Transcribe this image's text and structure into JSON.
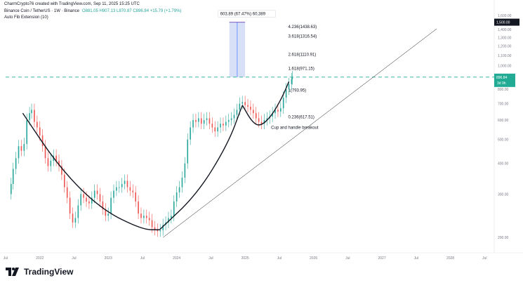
{
  "header": {
    "title": "CharmCrypto76 created with TradingView.com, Sep 11, 2025 15:25 UTC",
    "symbol": "Binance Coin / TetherUS · 1W · Binance",
    "ohlc": "O881.05 H907.13 L870.87 C896.84 +15.79 (+1.79%)",
    "indicator": "Auto Fib Extension (10)"
  },
  "footer": {
    "brand": "TradingView"
  },
  "colors": {
    "up": "#26a69a",
    "down": "#ef5350",
    "accent": "#2962ff",
    "teal_line": "#22ab94",
    "measure_fill": "#d1dbf6",
    "price_badge": "#22ab94",
    "target_badge": "#131722"
  },
  "chart_data": {
    "type": "candlestick",
    "x_ticks": [
      "Jul",
      "2022",
      "Jul",
      "2023",
      "Jul",
      "2024",
      "Jul",
      "2025",
      "Jul",
      "2026",
      "Jul",
      "2027",
      "Jul",
      "2028",
      "Jul"
    ],
    "y_ticks": [
      "1,600.00",
      "1,500.00",
      "1,400.00",
      "1,300.00",
      "1,200.00",
      "1,100.00",
      "1,000.00",
      "900.00",
      "800.00",
      "700.00",
      "600.00",
      "500.00",
      "400.00",
      "300.00",
      "200.00"
    ],
    "ylim": [
      185,
      1640
    ],
    "price_label": "896.84",
    "price_countdown": "3d 9h",
    "target_label": "1,500.00",
    "measure_label": "603.89 (67.47%) 60,389",
    "fib_levels": [
      {
        "label": "4.236(1438.63)",
        "value": 1438.63
      },
      {
        "label": "3.618(1316.54)",
        "value": 1316.54
      },
      {
        "label": "2.618(1110.91)",
        "value": 1110.91
      },
      {
        "label": "1.618(971.15)",
        "value": 971.15
      },
      {
        "label": "1(793.95)",
        "value": 793.95
      },
      {
        "label": "0.236(617.51)",
        "value": 617.51
      }
    ],
    "annotation": "Cup and handle breakout",
    "series": [
      {
        "kind": "candles",
        "close_points": [
          [
            2021.55,
            300
          ],
          [
            2021.58,
            330
          ],
          [
            2021.61,
            380
          ],
          [
            2021.65,
            420
          ],
          [
            2021.69,
            470
          ],
          [
            2021.73,
            450
          ],
          [
            2021.77,
            480
          ],
          [
            2021.81,
            600
          ],
          [
            2021.85,
            640
          ],
          [
            2021.88,
            660
          ],
          [
            2021.92,
            590
          ],
          [
            2021.96,
            560
          ],
          [
            2022.0,
            520
          ],
          [
            2022.04,
            470
          ],
          [
            2022.08,
            420
          ],
          [
            2022.12,
            390
          ],
          [
            2022.16,
            410
          ],
          [
            2022.2,
            430
          ],
          [
            2022.24,
            410
          ],
          [
            2022.28,
            390
          ],
          [
            2022.32,
            360
          ],
          [
            2022.36,
            320
          ],
          [
            2022.4,
            290
          ],
          [
            2022.44,
            250
          ],
          [
            2022.48,
            230
          ],
          [
            2022.52,
            240
          ],
          [
            2022.56,
            270
          ],
          [
            2022.6,
            300
          ],
          [
            2022.64,
            290
          ],
          [
            2022.68,
            280
          ],
          [
            2022.72,
            275
          ],
          [
            2022.76,
            290
          ],
          [
            2022.8,
            310
          ],
          [
            2022.84,
            300
          ],
          [
            2022.88,
            280
          ],
          [
            2022.92,
            260
          ],
          [
            2022.96,
            245
          ],
          [
            2023.0,
            250
          ],
          [
            2023.04,
            290
          ],
          [
            2023.08,
            310
          ],
          [
            2023.12,
            320
          ],
          [
            2023.16,
            320
          ],
          [
            2023.2,
            330
          ],
          [
            2023.24,
            340
          ],
          [
            2023.28,
            320
          ],
          [
            2023.32,
            310
          ],
          [
            2023.36,
            305
          ],
          [
            2023.4,
            280
          ],
          [
            2023.44,
            250
          ],
          [
            2023.48,
            240
          ],
          [
            2023.52,
            245
          ],
          [
            2023.56,
            240
          ],
          [
            2023.6,
            235
          ],
          [
            2023.64,
            220
          ],
          [
            2023.68,
            215
          ],
          [
            2023.72,
            212
          ],
          [
            2023.76,
            214
          ],
          [
            2023.8,
            225
          ],
          [
            2023.84,
            230
          ],
          [
            2023.88,
            240
          ],
          [
            2023.92,
            245
          ],
          [
            2023.96,
            280
          ],
          [
            2024.0,
            305
          ],
          [
            2024.04,
            320
          ],
          [
            2024.08,
            350
          ],
          [
            2024.12,
            400
          ],
          [
            2024.16,
            500
          ],
          [
            2024.2,
            560
          ],
          [
            2024.24,
            600
          ],
          [
            2024.28,
            590
          ],
          [
            2024.32,
            610
          ],
          [
            2024.36,
            580
          ],
          [
            2024.4,
            600
          ],
          [
            2024.44,
            610
          ],
          [
            2024.48,
            580
          ],
          [
            2024.52,
            560
          ],
          [
            2024.56,
            540
          ],
          [
            2024.6,
            560
          ],
          [
            2024.64,
            580
          ],
          [
            2024.68,
            570
          ],
          [
            2024.72,
            590
          ],
          [
            2024.76,
            600
          ],
          [
            2024.8,
            610
          ],
          [
            2024.84,
            630
          ],
          [
            2024.88,
            660
          ],
          [
            2024.92,
            700
          ],
          [
            2024.96,
            710
          ],
          [
            2025.0,
            690
          ],
          [
            2025.04,
            680
          ],
          [
            2025.08,
            660
          ],
          [
            2025.12,
            640
          ],
          [
            2025.16,
            610
          ],
          [
            2025.2,
            590
          ],
          [
            2025.24,
            580
          ],
          [
            2025.28,
            600
          ],
          [
            2025.32,
            610
          ],
          [
            2025.36,
            620
          ],
          [
            2025.4,
            640
          ],
          [
            2025.44,
            660
          ],
          [
            2025.48,
            650
          ],
          [
            2025.52,
            670
          ],
          [
            2025.56,
            740
          ],
          [
            2025.6,
            800
          ],
          [
            2025.64,
            840
          ],
          [
            2025.68,
            880
          ],
          [
            2025.69,
            896.84
          ]
        ]
      },
      {
        "kind": "cup_curve_1",
        "points": [
          [
            2021.75,
            640
          ],
          [
            2022.3,
            380
          ],
          [
            2022.9,
            260
          ],
          [
            2023.5,
            215
          ],
          [
            2023.75,
            215
          ]
        ]
      },
      {
        "kind": "cup_curve_2",
        "points": [
          [
            2023.75,
            215
          ],
          [
            2024.3,
            300
          ],
          [
            2024.75,
            480
          ],
          [
            2024.96,
            690
          ]
        ]
      },
      {
        "kind": "handle_curve",
        "points": [
          [
            2024.96,
            690
          ],
          [
            2025.1,
            590
          ],
          [
            2025.22,
            565
          ],
          [
            2025.38,
            620
          ],
          [
            2025.54,
            740
          ],
          [
            2025.64,
            860
          ]
        ]
      }
    ],
    "trendline": {
      "from": [
        2023.8,
        200
      ],
      "to": [
        2027.8,
        1410
      ]
    },
    "resistance_line": {
      "value": 896.84
    },
    "measure_box": {
      "from_x": 2024.77,
      "to_x": 2025.0,
      "low": 896.84,
      "high": 1500.0
    }
  }
}
